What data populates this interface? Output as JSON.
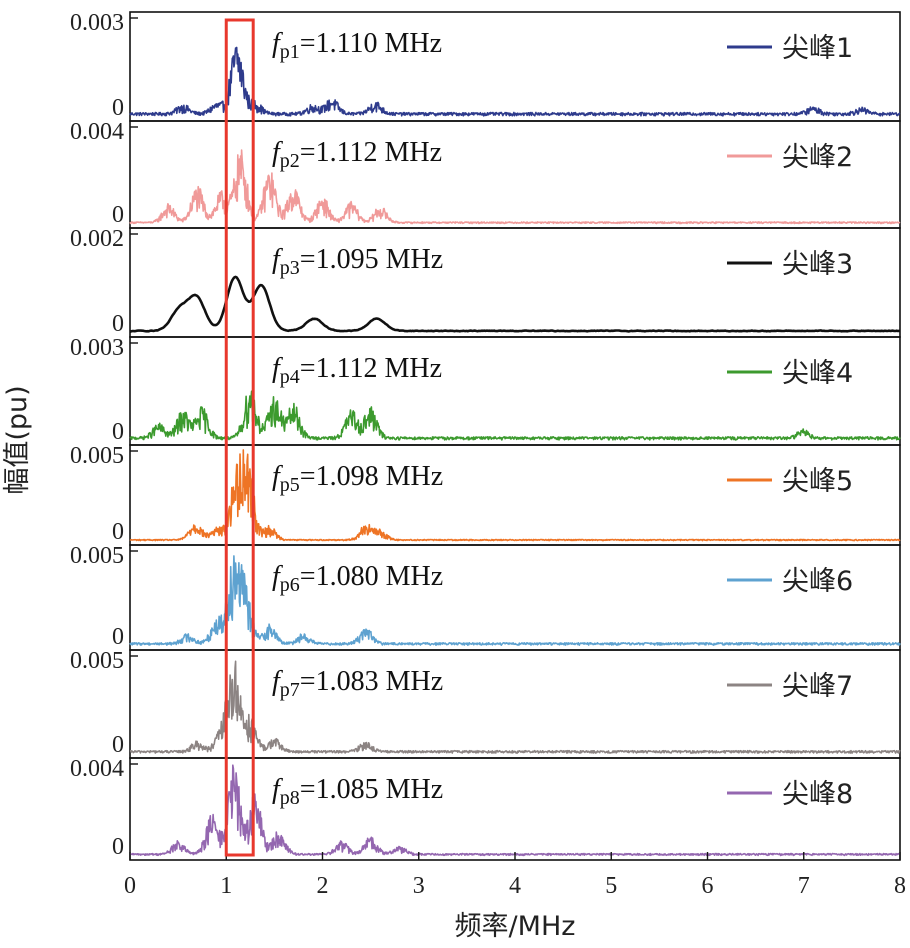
{
  "chart_data": {
    "type": "line",
    "xlabel": "频率/MHz",
    "ylabel": "幅值(pu)",
    "xlim": [
      0,
      8
    ],
    "x_ticks": [
      "0",
      "1",
      "2",
      "3",
      "4",
      "5",
      "6",
      "7",
      "8"
    ],
    "highlight_box_x": [
      1.0,
      1.28
    ],
    "highlight_color": "#e8382d",
    "panels": [
      {
        "series": "尖峰1",
        "color": "#2e3b8c",
        "ymax": 0.003,
        "ylim": [
          0,
          0.0034
        ],
        "y_ticks": [
          "0.003",
          "0"
        ],
        "annotation": {
          "f": "f",
          "sub": "p1",
          "text": "=1.110 MHz"
        },
        "legend": "尖峰1",
        "peak_x": 1.11,
        "peak_y": 0.0025,
        "floor": 0.00015,
        "bumps": [
          [
            0.55,
            0.0003
          ],
          [
            0.9,
            0.00035
          ],
          [
            1.11,
            0.0025
          ],
          [
            1.3,
            0.0004
          ],
          [
            1.9,
            0.0003
          ],
          [
            2.1,
            0.0005
          ],
          [
            2.55,
            0.0004
          ],
          [
            7.1,
            0.00022
          ],
          [
            7.6,
            0.00018
          ]
        ]
      },
      {
        "series": "尖峰2",
        "color": "#f09a99",
        "ymax": 0.004,
        "ylim": [
          0,
          0.0048
        ],
        "y_ticks": [
          "0.004",
          "0"
        ],
        "annotation": {
          "f": "f",
          "sub": "p2",
          "text": "=1.112 MHz"
        },
        "legend": "尖峰2",
        "peak_x": 1.112,
        "peak_y": 0.0038,
        "floor": 0.0001,
        "bumps": [
          [
            0.4,
            0.0009
          ],
          [
            0.7,
            0.0018
          ],
          [
            0.95,
            0.0015
          ],
          [
            1.15,
            0.0036
          ],
          [
            1.45,
            0.0026
          ],
          [
            1.7,
            0.0018
          ],
          [
            2.0,
            0.0013
          ],
          [
            2.3,
            0.001
          ],
          [
            2.6,
            0.0008
          ]
        ]
      },
      {
        "series": "尖峰3",
        "color": "#111111",
        "ymax": 0.002,
        "ylim": [
          0,
          0.0024
        ],
        "y_ticks": [
          "0.002",
          "0"
        ],
        "annotation": {
          "f": "f",
          "sub": "p3",
          "text": "=1.095 MHz"
        },
        "legend": "尖峰3",
        "peak_x": 1.095,
        "peak_y": 0.0013,
        "floor": 5e-05,
        "bumps": [
          [
            0.5,
            0.0005
          ],
          [
            0.68,
            0.0008
          ],
          [
            1.08,
            0.0013
          ],
          [
            1.35,
            0.0011
          ],
          [
            1.9,
            0.0003
          ],
          [
            2.55,
            0.0003
          ]
        ]
      },
      {
        "series": "尖峰4",
        "color": "#3c9a2e",
        "ymax": 0.003,
        "ylim": [
          0,
          0.0036
        ],
        "y_ticks": [
          "0.003",
          "0"
        ],
        "annotation": {
          "f": "f",
          "sub": "p4",
          "text": "=1.112 MHz"
        },
        "legend": "尖峰4",
        "peak_x": 1.112,
        "peak_y": 0.0019,
        "floor": 0.00015,
        "bumps": [
          [
            0.3,
            0.0005
          ],
          [
            0.55,
            0.001
          ],
          [
            0.75,
            0.0011
          ],
          [
            1.25,
            0.0019
          ],
          [
            1.5,
            0.0015
          ],
          [
            1.7,
            0.0012
          ],
          [
            2.3,
            0.001
          ],
          [
            2.5,
            0.0011
          ],
          [
            7.0,
            0.0003
          ]
        ]
      },
      {
        "series": "尖峰5",
        "color": "#ee7425",
        "ymax": 0.005,
        "ylim": [
          0,
          0.006
        ],
        "y_ticks": [
          "0.005",
          "0"
        ],
        "annotation": {
          "f": "f",
          "sub": "p5",
          "text": "=1.098 MHz"
        },
        "legend": "尖峰5",
        "peak_x": 1.098,
        "peak_y": 0.0053,
        "floor": 0.0001,
        "bumps": [
          [
            0.68,
            0.0012
          ],
          [
            0.9,
            0.0008
          ],
          [
            1.1,
            0.004
          ],
          [
            1.22,
            0.0053
          ],
          [
            1.45,
            0.0009
          ],
          [
            2.45,
            0.001
          ],
          [
            2.6,
            0.0006
          ]
        ]
      },
      {
        "series": "尖峰6",
        "color": "#5ea2d0",
        "ymax": 0.005,
        "ylim": [
          0,
          0.006
        ],
        "y_ticks": [
          "0.005",
          "0"
        ],
        "annotation": {
          "f": "f",
          "sub": "p6",
          "text": "=1.080 MHz"
        },
        "legend": "尖峰6",
        "peak_x": 1.08,
        "peak_y": 0.0057,
        "floor": 0.0002,
        "bumps": [
          [
            0.6,
            0.0006
          ],
          [
            0.9,
            0.0015
          ],
          [
            1.08,
            0.0057
          ],
          [
            1.2,
            0.003
          ],
          [
            1.45,
            0.0012
          ],
          [
            1.8,
            0.0006
          ],
          [
            2.45,
            0.001
          ]
        ]
      },
      {
        "series": "尖峰7",
        "color": "#8c8483",
        "ymax": 0.005,
        "ylim": [
          0,
          0.006
        ],
        "y_ticks": [
          "0.005",
          "0"
        ],
        "annotation": {
          "f": "f",
          "sub": "p7",
          "text": "=1.083 MHz"
        },
        "legend": "尖峰7",
        "peak_x": 1.083,
        "peak_y": 0.0054,
        "floor": 0.0002,
        "bumps": [
          [
            0.7,
            0.0006
          ],
          [
            0.95,
            0.0012
          ],
          [
            1.08,
            0.0054
          ],
          [
            1.25,
            0.002
          ],
          [
            1.5,
            0.0008
          ],
          [
            2.45,
            0.0006
          ]
        ]
      },
      {
        "series": "尖峰8",
        "color": "#9467b0",
        "ymax": 0.004,
        "ylim": [
          0,
          0.0058
        ],
        "y_ticks": [
          "0.004",
          "0"
        ],
        "annotation": {
          "f": "f",
          "sub": "p8",
          "text": "=1.085 MHz"
        },
        "legend": "尖峰8",
        "peak_x": 1.085,
        "peak_y": 0.0056,
        "floor": 0.00015,
        "bumps": [
          [
            0.5,
            0.0008
          ],
          [
            0.85,
            0.0025
          ],
          [
            1.08,
            0.0056
          ],
          [
            1.3,
            0.0038
          ],
          [
            1.55,
            0.0015
          ],
          [
            2.2,
            0.0008
          ],
          [
            2.5,
            0.0011
          ],
          [
            2.8,
            0.0005
          ]
        ]
      }
    ]
  }
}
